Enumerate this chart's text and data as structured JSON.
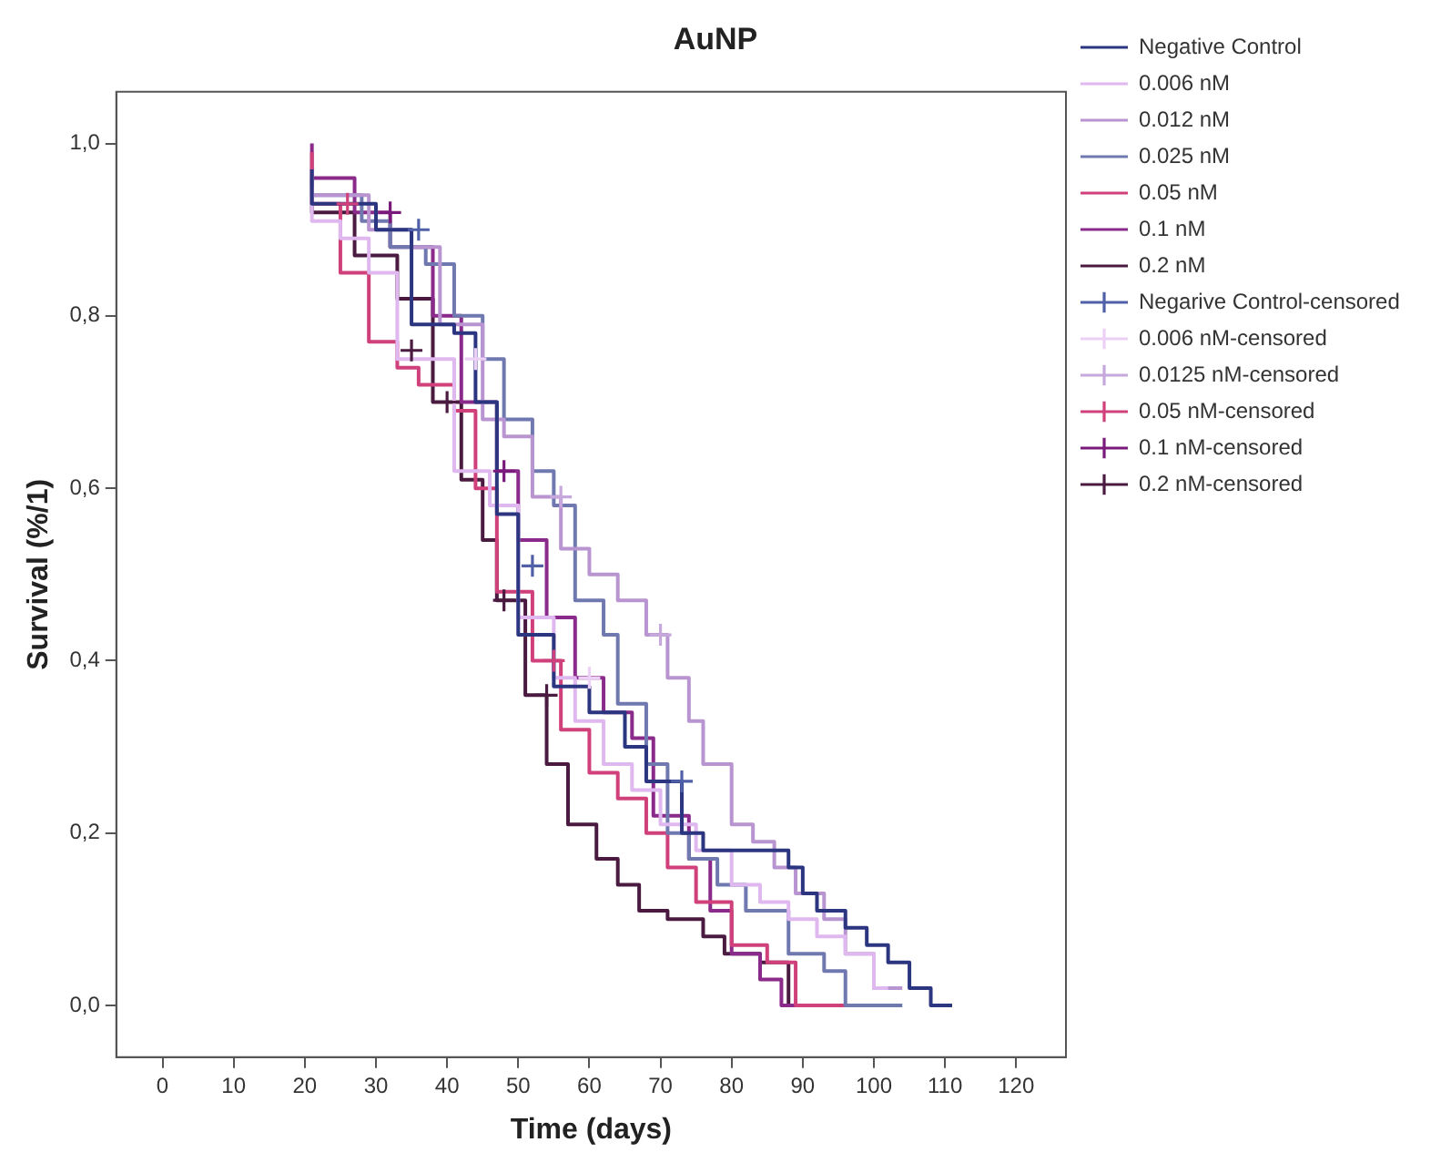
{
  "chart_data": {
    "type": "step",
    "title": "AuNP",
    "xlabel": "Time (days)",
    "ylabel": "Survival (%/1)",
    "xlim": [
      -6.5,
      127
    ],
    "xticks": [
      0,
      10,
      20,
      30,
      40,
      50,
      60,
      70,
      80,
      90,
      100,
      110,
      120
    ],
    "ylim": [
      -0.06,
      1.06
    ],
    "yticks": [
      {
        "value": 0,
        "label": "0,0"
      },
      {
        "value": 0.2,
        "label": "0,2"
      },
      {
        "value": 0.4,
        "label": "0,4"
      },
      {
        "value": 0.6,
        "label": "0,6"
      },
      {
        "value": 0.8,
        "label": "0,8"
      },
      {
        "value": 1,
        "label": "1,0"
      }
    ],
    "grid": false,
    "legend": "right",
    "marker": "none",
    "series": [
      {
        "name": "Negative Control",
        "color": "#2b3580",
        "x": [
          21,
          30,
          35,
          41,
          44,
          47,
          50,
          55,
          60,
          65,
          68,
          73,
          76,
          88,
          90,
          92,
          96,
          99,
          102,
          105,
          108,
          111
        ],
        "values": [
          0.97,
          0.93,
          0.9,
          0.79,
          0.78,
          0.7,
          0.57,
          0.43,
          0.37,
          0.34,
          0.3,
          0.26,
          0.2,
          0.18,
          0.16,
          0.13,
          0.11,
          0.09,
          0.07,
          0.05,
          0.02,
          0
        ]
      },
      {
        "name": "0.006 nM",
        "color": "#e0b8f0",
        "x": [
          21,
          25,
          29,
          33,
          41,
          46,
          50,
          55,
          58,
          62,
          66,
          70,
          75,
          80,
          84,
          88,
          92,
          96,
          100,
          102
        ],
        "values": [
          0.95,
          0.91,
          0.89,
          0.85,
          0.75,
          0.62,
          0.58,
          0.45,
          0.38,
          0.33,
          0.28,
          0.25,
          0.21,
          0.18,
          0.14,
          0.12,
          0.1,
          0.08,
          0.06,
          0.02
        ]
      },
      {
        "name": "0.012 nM",
        "color": "#b894d0",
        "x": [
          21,
          29,
          35,
          39,
          45,
          48,
          52,
          56,
          60,
          64,
          68,
          71,
          74,
          76,
          80,
          83,
          86,
          89,
          93,
          96,
          100,
          104
        ],
        "values": [
          0.97,
          0.94,
          0.9,
          0.88,
          0.79,
          0.68,
          0.66,
          0.59,
          0.53,
          0.5,
          0.47,
          0.43,
          0.38,
          0.33,
          0.28,
          0.21,
          0.19,
          0.16,
          0.13,
          0.1,
          0.06,
          0.02
        ]
      },
      {
        "name": "0.025 nM",
        "color": "#6f79b0",
        "x": [
          21,
          28,
          32,
          37,
          41,
          45,
          48,
          52,
          55,
          58,
          62,
          64,
          68,
          71,
          74,
          78,
          82,
          88,
          93,
          96,
          104
        ],
        "values": [
          0.96,
          0.94,
          0.91,
          0.88,
          0.86,
          0.8,
          0.75,
          0.68,
          0.62,
          0.58,
          0.47,
          0.43,
          0.35,
          0.28,
          0.2,
          0.17,
          0.14,
          0.11,
          0.06,
          0.04,
          0
        ]
      },
      {
        "name": "0.05 nM",
        "color": "#d0407a",
        "x": [
          21,
          25,
          29,
          33,
          36,
          41,
          44,
          47,
          52,
          56,
          60,
          64,
          68,
          71,
          75,
          80,
          85,
          89,
          100
        ],
        "values": [
          0.99,
          0.93,
          0.85,
          0.77,
          0.74,
          0.72,
          0.69,
          0.6,
          0.48,
          0.4,
          0.32,
          0.27,
          0.24,
          0.2,
          0.16,
          0.12,
          0.07,
          0.05,
          0
        ]
      },
      {
        "name": "0.1 nM",
        "color": "#8a2a8a",
        "x": [
          21,
          27,
          32,
          38,
          42,
          47,
          50,
          54,
          58,
          62,
          66,
          69,
          74,
          77,
          80,
          84,
          87,
          101
        ],
        "values": [
          1,
          0.96,
          0.92,
          0.88,
          0.8,
          0.7,
          0.62,
          0.54,
          0.45,
          0.38,
          0.34,
          0.31,
          0.22,
          0.17,
          0.11,
          0.06,
          0.03,
          0
        ]
      },
      {
        "name": "0.2 nM",
        "color": "#4a1a40",
        "x": [
          21,
          27,
          33,
          38,
          42,
          45,
          47,
          51,
          54,
          57,
          61,
          64,
          67,
          71,
          76,
          79,
          84,
          88,
          94
        ],
        "values": [
          0.96,
          0.92,
          0.87,
          0.82,
          0.7,
          0.61,
          0.54,
          0.47,
          0.36,
          0.28,
          0.21,
          0.17,
          0.14,
          0.11,
          0.1,
          0.08,
          0.06,
          0.05,
          0
        ]
      },
      {
        "name": "Negarive Control-censored",
        "type": "scatter",
        "marker": "cross",
        "color": "#5060a8",
        "x": [
          36,
          52,
          73
        ],
        "values": [
          0.9,
          0.51,
          0.26
        ]
      },
      {
        "name": "0.006 nM-censored",
        "type": "scatter",
        "marker": "cross",
        "color": "#ecd0f6",
        "x": [
          44,
          60
        ],
        "values": [
          0.75,
          0.38
        ]
      },
      {
        "name": "0.0125 nM-censored",
        "type": "scatter",
        "marker": "cross",
        "color": "#c6a8dc",
        "x": [
          56,
          70
        ],
        "values": [
          0.59,
          0.43
        ]
      },
      {
        "name": "0.05 nM-censored",
        "type": "scatter",
        "marker": "cross",
        "color": "#d0407a",
        "x": [
          26,
          55
        ],
        "values": [
          0.93,
          0.4
        ]
      },
      {
        "name": "0.1 nM-censored",
        "type": "scatter",
        "marker": "cross",
        "color": "#7a1a7a",
        "x": [
          32,
          48
        ],
        "values": [
          0.92,
          0.62
        ]
      },
      {
        "name": "0.2 nM-censored",
        "type": "scatter",
        "marker": "cross",
        "color": "#4a1a40",
        "x": [
          35,
          40,
          48,
          54
        ],
        "values": [
          0.76,
          0.7,
          0.47,
          0.36
        ]
      }
    ]
  }
}
